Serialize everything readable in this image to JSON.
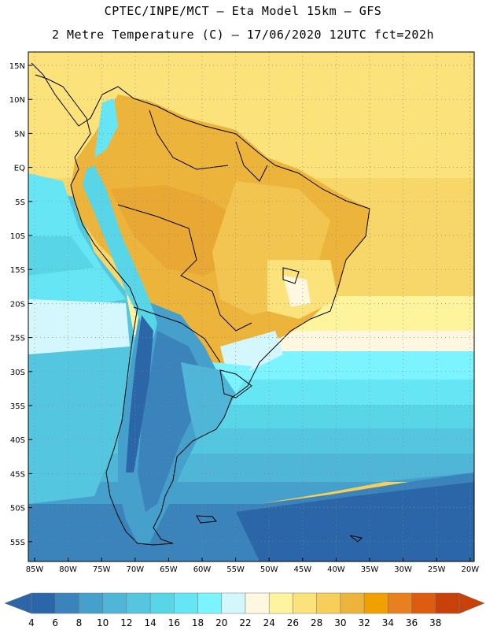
{
  "header": {
    "title_line1": "CPTEC/INPE/MCT –  Eta Model 15km – GFS",
    "title_line2": "2 Metre Temperature (C) – 17/06/2020 12UTC fct=202h"
  },
  "map": {
    "lon_labels": [
      "85W",
      "80W",
      "75W",
      "70W",
      "65W",
      "60W",
      "55W",
      "50W",
      "45W",
      "40W",
      "35W",
      "30W",
      "25W",
      "20W"
    ],
    "lat_labels": [
      "15N",
      "10N",
      "5N",
      "EQ",
      "5S",
      "10S",
      "15S",
      "20S",
      "25S",
      "30S",
      "35S",
      "40S",
      "45S",
      "50S",
      "55S"
    ],
    "land_outline_color": "#000000",
    "grid_style": "dotted"
  },
  "colorbar": {
    "labels": [
      "4",
      "6",
      "8",
      "10",
      "12",
      "14",
      "16",
      "18",
      "20",
      "22",
      "24",
      "26",
      "28",
      "30",
      "32",
      "34",
      "36",
      "38"
    ],
    "colors": [
      "#2b67a8",
      "#3a84bb",
      "#45a0cc",
      "#4fb6d8",
      "#54c6df",
      "#58d6e8",
      "#66e6f5",
      "#7cf4ff",
      "#d4f6fd",
      "#fff7e0",
      "#fff49e",
      "#fce27a",
      "#f6cf5a",
      "#ecb43a",
      "#f0a000",
      "#e88020",
      "#dc5c10",
      "#c8400a"
    ]
  }
}
